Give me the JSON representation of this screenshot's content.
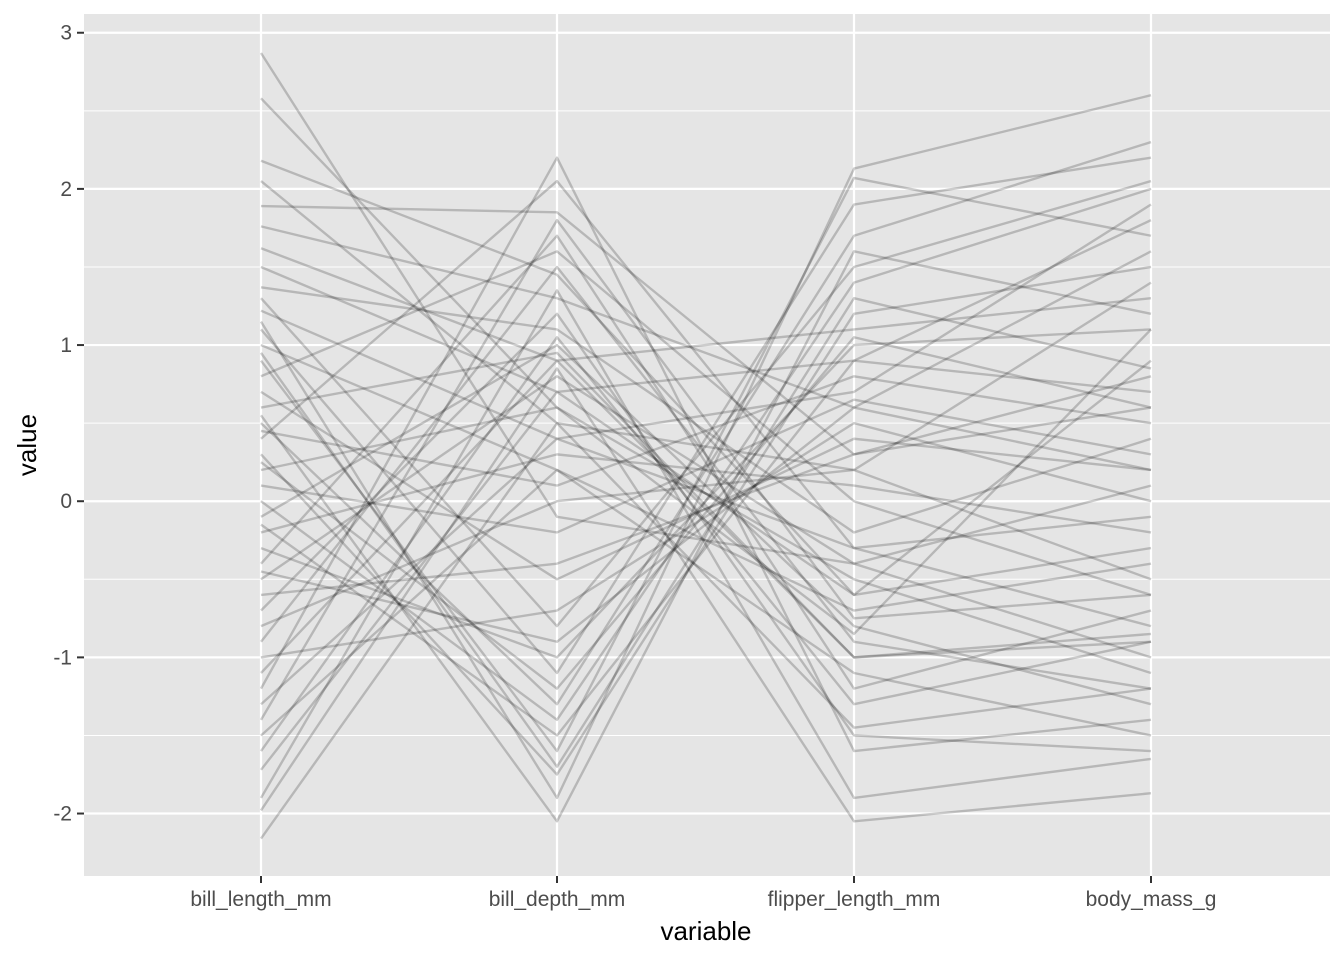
{
  "chart_data": {
    "type": "line",
    "subtype": "parallel-coordinates",
    "title": "",
    "xlabel": "variable",
    "ylabel": "value",
    "categories": [
      "bill_length_mm",
      "bill_depth_mm",
      "flipper_length_mm",
      "body_mass_g"
    ],
    "y_ticks": [
      3,
      2,
      1,
      0,
      -1,
      -2
    ],
    "ylim": [
      -2.4,
      3.12
    ],
    "grid": true,
    "line_color": "#000000",
    "line_opacity": 0.2,
    "panel_background": "#e5e5e5",
    "grid_color": "#ffffff",
    "series": [
      {
        "values": [
          2.87,
          -0.1,
          -0.4,
          0.1
        ]
      },
      {
        "values": [
          2.58,
          0.6,
          -0.85,
          1.1
        ]
      },
      {
        "values": [
          2.18,
          1.45,
          -0.6,
          0.9
        ]
      },
      {
        "values": [
          2.05,
          0.5,
          0.2,
          1.4
        ]
      },
      {
        "values": [
          1.89,
          1.85,
          0.3,
          0.8
        ]
      },
      {
        "values": [
          1.76,
          1.3,
          0.6,
          1.6
        ]
      },
      {
        "values": [
          1.62,
          0.9,
          1.1,
          1.3
        ]
      },
      {
        "values": [
          1.5,
          0.7,
          0.9,
          0.7
        ]
      },
      {
        "values": [
          1.37,
          1.1,
          -0.2,
          0.4
        ]
      },
      {
        "values": [
          1.3,
          -0.8,
          1.5,
          2.05
        ]
      },
      {
        "values": [
          1.22,
          0.4,
          0.7,
          1.9
        ]
      },
      {
        "values": [
          1.1,
          -1.1,
          1.9,
          2.2
        ]
      },
      {
        "values": [
          1.0,
          0.2,
          -0.7,
          -0.4
        ]
      },
      {
        "values": [
          0.9,
          -1.6,
          2.07,
          1.7
        ]
      },
      {
        "values": [
          0.8,
          1.6,
          0.0,
          -0.6
        ]
      },
      {
        "values": [
          0.7,
          -0.5,
          0.4,
          0.2
        ]
      },
      {
        "values": [
          0.6,
          0.95,
          -1.0,
          -0.9
        ]
      },
      {
        "values": [
          0.5,
          -1.3,
          1.7,
          2.3
        ]
      },
      {
        "values": [
          0.45,
          0.1,
          0.8,
          0.5
        ]
      },
      {
        "values": [
          0.4,
          2.05,
          -0.3,
          -0.8
        ]
      },
      {
        "values": [
          0.3,
          -1.75,
          1.2,
          1.5
        ]
      },
      {
        "values": [
          0.2,
          0.6,
          -0.5,
          -1.1
        ]
      },
      {
        "values": [
          0.1,
          -0.2,
          0.65,
          0.3
        ]
      },
      {
        "values": [
          0.0,
          -1.4,
          1.4,
          2.0
        ]
      },
      {
        "values": [
          -0.1,
          1.0,
          -0.8,
          -1.3
        ]
      },
      {
        "values": [
          -0.2,
          0.3,
          0.1,
          -0.2
        ]
      },
      {
        "values": [
          -0.3,
          -1.0,
          1.0,
          1.1
        ]
      },
      {
        "values": [
          -0.4,
          1.7,
          -1.2,
          -0.7
        ]
      },
      {
        "values": [
          -0.5,
          0.8,
          -0.4,
          -1.0
        ]
      },
      {
        "values": [
          -0.6,
          -0.4,
          0.3,
          0.6
        ]
      },
      {
        "values": [
          -0.7,
          1.2,
          -1.5,
          -1.6
        ]
      },
      {
        "values": [
          -0.8,
          0.0,
          0.2,
          -0.5
        ]
      },
      {
        "values": [
          -0.9,
          1.5,
          -0.9,
          -1.2
        ]
      },
      {
        "values": [
          -1.0,
          -0.7,
          0.5,
          0.0
        ]
      },
      {
        "values": [
          -1.1,
          0.9,
          -1.0,
          -0.85
        ]
      },
      {
        "values": [
          -1.2,
          2.2,
          -1.6,
          -1.4
        ]
      },
      {
        "values": [
          -1.3,
          0.4,
          -0.3,
          -0.1
        ]
      },
      {
        "values": [
          -1.4,
          1.8,
          -0.75,
          -0.6
        ]
      },
      {
        "values": [
          -1.5,
          0.2,
          -1.1,
          -1.5
        ]
      },
      {
        "values": [
          -1.6,
          1.05,
          -1.3,
          -0.9
        ]
      },
      {
        "values": [
          -1.72,
          0.7,
          -0.6,
          -0.3
        ]
      },
      {
        "values": [
          -1.9,
          1.35,
          -1.9,
          -1.65
        ]
      },
      {
        "values": [
          -1.98,
          0.85,
          -2.05,
          -1.87
        ]
      },
      {
        "values": [
          -2.16,
          0.5,
          -1.45,
          -1.2
        ]
      },
      {
        "values": [
          0.95,
          -1.7,
          1.3,
          0.85
        ]
      },
      {
        "values": [
          0.55,
          -2.05,
          1.6,
          1.2
        ]
      },
      {
        "values": [
          0.25,
          -1.2,
          1.05,
          0.6
        ]
      },
      {
        "values": [
          -0.15,
          -1.5,
          0.9,
          1.8
        ]
      },
      {
        "values": [
          -0.45,
          -0.9,
          0.6,
          0.2
        ]
      },
      {
        "values": [
          1.15,
          -1.9,
          2.13,
          2.6
        ]
      }
    ]
  }
}
